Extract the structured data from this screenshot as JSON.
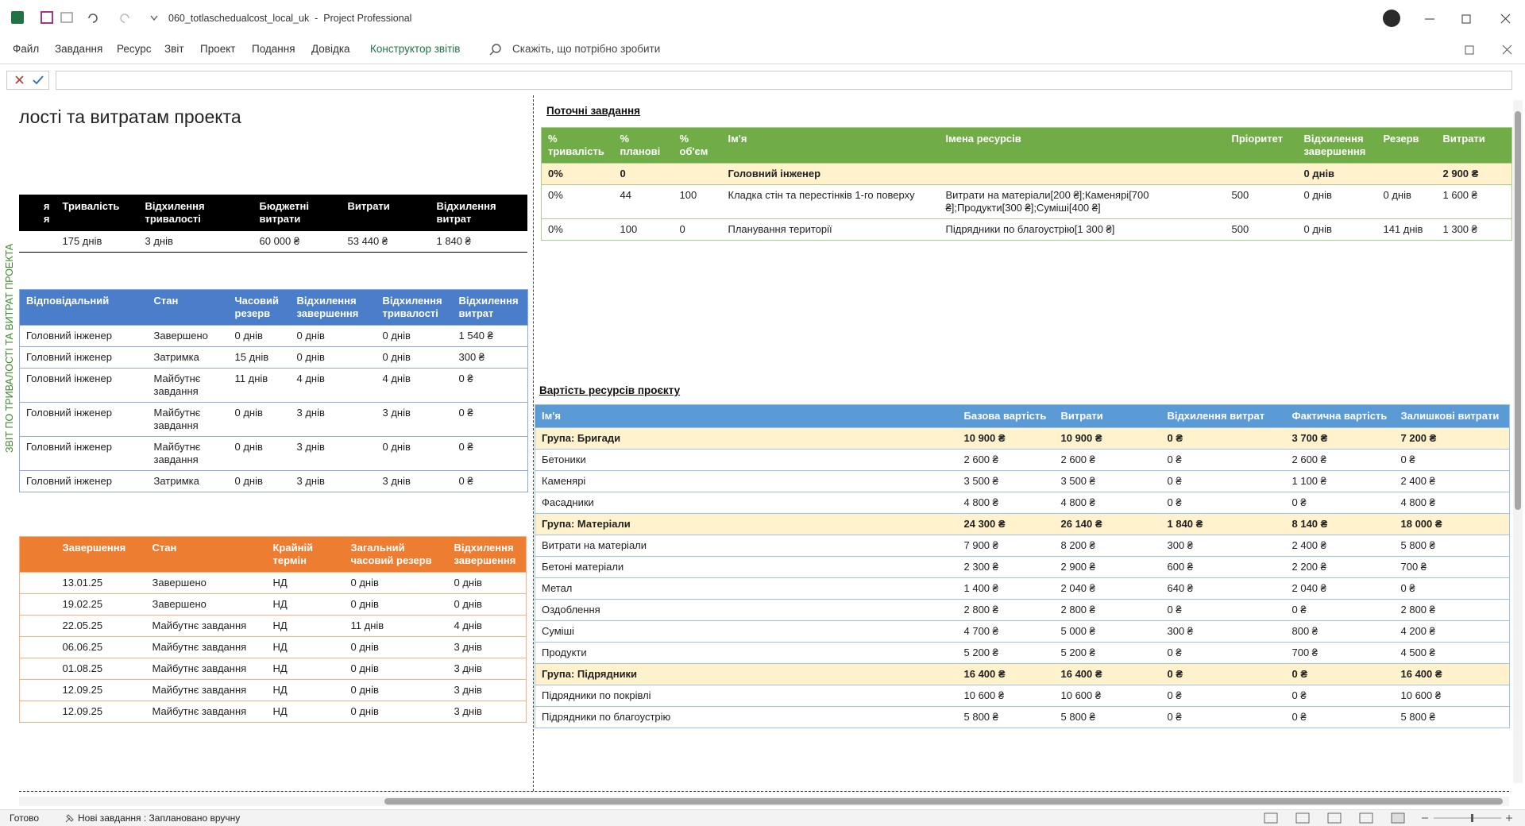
{
  "window": {
    "title": "060_totlaschedualcost_local_uk  -  Project Professional"
  },
  "menu": [
    "Файл",
    "Завдання",
    "Ресурс",
    "Звіт",
    "Проект",
    "Подання",
    "Довідка",
    "Конструктор звітів"
  ],
  "search": "Скажіть, що потрібно зробити",
  "report": {
    "title": "лості та витратам проекта",
    "side_label": "ЗВІТ ПО ТРИВАЛОСТІ ТА ВИТРАТ ПРОЕКТА"
  },
  "summary_table": {
    "header_color": "#000000",
    "border_color": "#000000",
    "headers": [
      "я\nя",
      "Тривалість",
      "Відхилення тривалості",
      "Бюджетні витрати",
      "Витрати",
      "Відхилення витрат"
    ],
    "rows": [
      [
        null,
        "175 днів",
        "3 днів",
        "60 000 ₴",
        "53 440 ₴",
        "1 840 ₴"
      ]
    ]
  },
  "responsible_table": {
    "header_color": "#4a7ecb",
    "border_color": "#8eaadb",
    "headers": [
      "Відповідальний",
      "Стан",
      "Часовий резерв",
      "Відхилення завершення",
      "Відхилення тривалості",
      "Відхилення витрат"
    ],
    "rows": [
      [
        "Головний інженер",
        "Завершено",
        "0 днів",
        "0 днів",
        "0 днів",
        "1 540 ₴"
      ],
      [
        "Головний інженер",
        "Затримка",
        "15 днів",
        "0 днів",
        "0 днів",
        "300 ₴"
      ],
      [
        "Головний інженер",
        "Майбутнє завдання",
        "11 днів",
        "4 днів",
        "4 днів",
        "0 ₴"
      ],
      [
        "Головний інженер",
        "Майбутнє завдання",
        "0 днів",
        "3 днів",
        "3 днів",
        "0 ₴"
      ],
      [
        "Головний інженер",
        "Майбутнє завдання",
        "0 днів",
        "3 днів",
        "0 днів",
        "0 ₴"
      ],
      [
        "Головний інженер",
        "Затримка",
        "0 днів",
        "3 днів",
        "3 днів",
        "0 ₴"
      ]
    ]
  },
  "milestones_table": {
    "header_color": "#ed7d31",
    "border_color": "#f4b183",
    "headers": [
      null,
      "Завершення",
      "Стан",
      "Крайній термін",
      "Загальний часовий резерв",
      "Відхилення завершення"
    ],
    "rows": [
      [
        null,
        "13.01.25",
        "Завершено",
        "НД",
        "0 днів",
        "0 днів"
      ],
      [
        null,
        "19.02.25",
        "Завершено",
        "НД",
        "0 днів",
        "0 днів"
      ],
      [
        null,
        "22.05.25",
        "Майбутнє завдання",
        "НД",
        "11 днів",
        "4 днів"
      ],
      [
        null,
        "06.06.25",
        "Майбутнє завдання",
        "НД",
        "0 днів",
        "3 днів"
      ],
      [
        null,
        "01.08.25",
        "Майбутнє завдання",
        "НД",
        "0 днів",
        "3 днів"
      ],
      [
        null,
        "12.09.25",
        "Майбутнє завдання",
        "НД",
        "0 днів",
        "3 днів"
      ],
      [
        null,
        "12.09.25",
        "Майбутнє завдання",
        "НД",
        "0 днів",
        "3 днів"
      ]
    ]
  },
  "current_tasks": {
    "title": "Поточні завдання",
    "header_color": "#70ad47",
    "border_color": "#a9d08e",
    "highlight_color": "#fff2cc",
    "headers": [
      "% тривалість",
      "% планові",
      "% об'єм",
      "Ім'я",
      "Імена ресурсів",
      "Пріоритет",
      "Відхилення завершення",
      "Резерв",
      "Витрати"
    ],
    "rows": [
      {
        "highlight": true,
        "cells": [
          "0%",
          "0",
          null,
          "Головний інженер",
          null,
          null,
          "0 днів",
          null,
          "2 900 ₴"
        ]
      },
      {
        "highlight": false,
        "cells": [
          "0%",
          "44",
          "100",
          "Кладка стін та перестінків 1-го поверху",
          "Витрати на матеріали[200 ₴];Каменярі[700 ₴];Продукти[300 ₴];Суміші[400 ₴]",
          "500",
          "0 днів",
          "0 днів",
          "1 600 ₴"
        ]
      },
      {
        "highlight": false,
        "cells": [
          "0%",
          "100",
          "0",
          "Планування території",
          "Підрядники по благоустрію[1 300 ₴]",
          "500",
          "0 днів",
          "141 днів",
          "1 300 ₴"
        ]
      }
    ]
  },
  "resource_costs": {
    "title": "Вартість ресурсів проєкту",
    "header_color": "#5b9bd5",
    "border_color": "#9dc3e6",
    "highlight_color": "#fff2cc",
    "headers": [
      "Ім'я",
      "Базова вартість",
      "Витрати",
      "Відхилення витрат",
      "Фактична вартість",
      "Залишкові витрати"
    ],
    "rows": [
      {
        "highlight": true,
        "cells": [
          "Група: Бригади",
          "10 900 ₴",
          "10 900 ₴",
          "0 ₴",
          "3 700 ₴",
          "7 200 ₴"
        ]
      },
      {
        "highlight": false,
        "cells": [
          "Бетоники",
          "2 600 ₴",
          "2 600 ₴",
          "0 ₴",
          "2 600 ₴",
          "0 ₴"
        ]
      },
      {
        "highlight": false,
        "cells": [
          "Каменярі",
          "3 500 ₴",
          "3 500 ₴",
          "0 ₴",
          "1 100 ₴",
          "2 400 ₴"
        ]
      },
      {
        "highlight": false,
        "cells": [
          "Фасадники",
          "4 800 ₴",
          "4 800 ₴",
          "0 ₴",
          "0 ₴",
          "4 800 ₴"
        ]
      },
      {
        "highlight": true,
        "cells": [
          "Група: Матеріали",
          "24 300 ₴",
          "26 140 ₴",
          "1 840 ₴",
          "8 140 ₴",
          "18 000 ₴"
        ]
      },
      {
        "highlight": false,
        "cells": [
          "Витрати на матеріали",
          "7 900 ₴",
          "8 200 ₴",
          "300 ₴",
          "2 400 ₴",
          "5 800 ₴"
        ]
      },
      {
        "highlight": false,
        "cells": [
          "Бетоні матеріали",
          "2 300 ₴",
          "2 900 ₴",
          "600 ₴",
          "2 200 ₴",
          "700 ₴"
        ]
      },
      {
        "highlight": false,
        "cells": [
          "Метал",
          "1 400 ₴",
          "2 040 ₴",
          "640 ₴",
          "2 040 ₴",
          "0 ₴"
        ]
      },
      {
        "highlight": false,
        "cells": [
          "Оздоблення",
          "2 800 ₴",
          "2 800 ₴",
          "0 ₴",
          "0 ₴",
          "2 800 ₴"
        ]
      },
      {
        "highlight": false,
        "cells": [
          "Суміші",
          "4 700 ₴",
          "5 000 ₴",
          "300 ₴",
          "800 ₴",
          "4 200 ₴"
        ]
      },
      {
        "highlight": false,
        "cells": [
          "Продукти",
          "5 200 ₴",
          "5 200 ₴",
          "0 ₴",
          "700 ₴",
          "4 500 ₴"
        ]
      },
      {
        "highlight": true,
        "cells": [
          "Група: Підрядники",
          "16 400 ₴",
          "16 400 ₴",
          "0 ₴",
          "0 ₴",
          "16 400 ₴"
        ]
      },
      {
        "highlight": false,
        "cells": [
          "Підрядники по покрівлі",
          "10 600 ₴",
          "10 600 ₴",
          "0 ₴",
          "0 ₴",
          "10 600 ₴"
        ]
      },
      {
        "highlight": false,
        "cells": [
          "Підрядники по благоустрію",
          "5 800 ₴",
          "5 800 ₴",
          "0 ₴",
          "0 ₴",
          "5 800 ₴"
        ]
      }
    ]
  },
  "status": {
    "ready": "Готово",
    "mode": "Нові завдання : Заплановано вручну"
  }
}
